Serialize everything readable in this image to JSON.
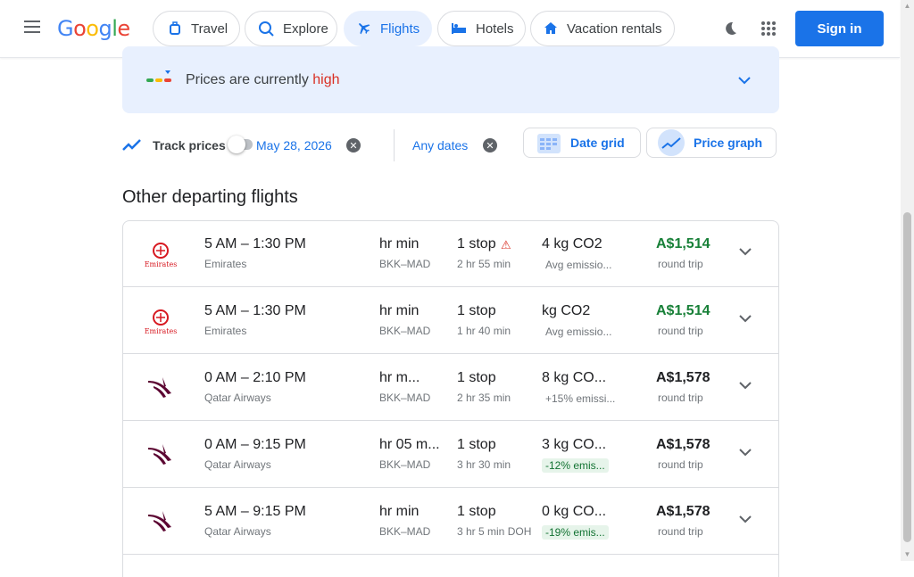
{
  "header": {
    "logo_text": "Google",
    "nav": [
      {
        "label": "Travel",
        "icon": "travel-icon"
      },
      {
        "label": "Explore",
        "icon": "explore-icon"
      },
      {
        "label": "Flights",
        "icon": "flight-icon"
      },
      {
        "label": "Hotels",
        "icon": "hotel-icon"
      },
      {
        "label": "Vacation rentals",
        "icon": "home-icon"
      }
    ],
    "sign_in": "Sign in"
  },
  "insight": {
    "prefix": "Prices are currently ",
    "level": "high"
  },
  "tracking": {
    "label": "Track prices",
    "date_chip": "May 28, 2026",
    "any_dates_chip": "Any dates",
    "date_grid": "Date grid",
    "price_graph": "Price graph"
  },
  "section": {
    "title": "Other departing flights"
  },
  "colors": {
    "accent": "#1a73e8",
    "price_green": "#188038",
    "high_red": "#d93025"
  },
  "flights": [
    {
      "times": "5 AM – 1:30 PM",
      "dep": "5 AM",
      "arr": "1:30 PM",
      "airline": "Emirates",
      "duration": "hr min",
      "route": "BKK–MAD",
      "stops": "1 stop",
      "layover": "2 hr 55 min",
      "co2": "4 kg CO2",
      "emissions": "Avg emissio...",
      "emissions_good": false,
      "price": "A$1,514",
      "price_green": true,
      "trip": "round trip",
      "warning": true
    },
    {
      "times": "5 AM – 1:30 PM",
      "dep": "5 AM",
      "arr": "1:30 PM",
      "airline": "Emirates",
      "duration": "hr min",
      "route": "BKK–MAD",
      "stops": "1 stop",
      "layover": "1 hr 40 min",
      "co2": "kg CO2",
      "emissions": "Avg emissio...",
      "emissions_good": false,
      "price": "A$1,514",
      "price_green": true,
      "trip": "round trip",
      "warning": false
    },
    {
      "times": "0 AM – 2:10 PM",
      "dep": "0 AM",
      "arr": "2:10 PM",
      "airline": "Qatar Airways",
      "duration": "hr m...",
      "route": "BKK–MAD",
      "stops": "1 stop",
      "layover": "2 hr 35 min",
      "co2": "8 kg CO...",
      "emissions": "+15% emissi...",
      "emissions_good": false,
      "price": "A$1,578",
      "price_green": false,
      "trip": "round trip",
      "warning": false
    },
    {
      "times": "0 AM – 9:15 PM",
      "dep": "0 AM",
      "arr": "9:15 PM",
      "airline": "Qatar Airways",
      "duration": "hr 05 m...",
      "route": "BKK–MAD",
      "stops": "1 stop",
      "layover": "3 hr 30 min",
      "co2": "3 kg CO...",
      "emissions": "-12% emis...",
      "emissions_good": true,
      "price": "A$1,578",
      "price_green": false,
      "trip": "round trip",
      "warning": false
    },
    {
      "times": "5 AM – 9:15 PM",
      "dep": "5 AM",
      "arr": "9:15 PM",
      "airline": "Qatar Airways",
      "duration": "hr min",
      "route": "BKK–MAD",
      "stops": "1 stop",
      "layover": "3 hr 5 min DOH",
      "co2": "0 kg CO...",
      "emissions": "-19% emis...",
      "emissions_good": true,
      "price": "A$1,578",
      "price_green": false,
      "trip": "round trip",
      "warning": false
    }
  ]
}
